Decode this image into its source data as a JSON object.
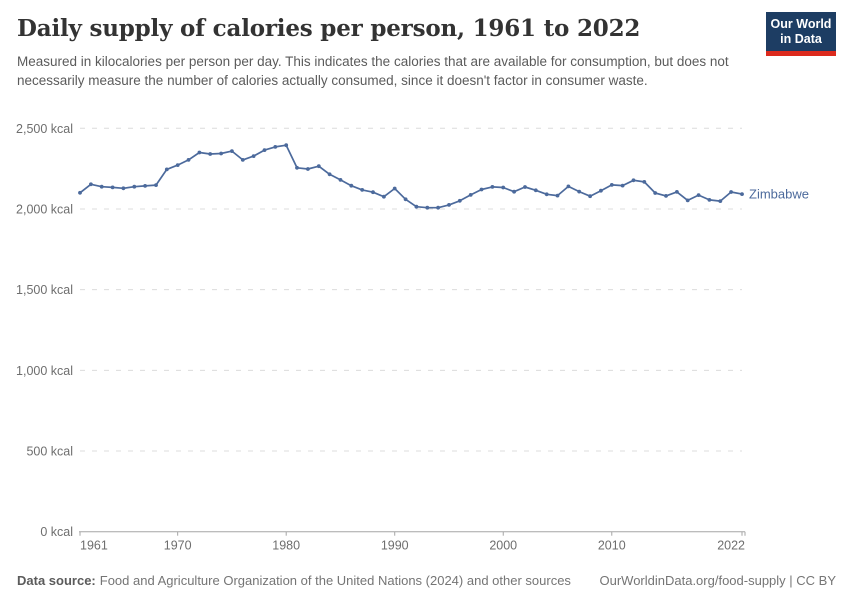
{
  "header": {
    "title": "Daily supply of calories per person, 1961 to 2022",
    "subtitle": "Measured in kilocalories per person per day. This indicates the calories that are available for consumption, but does not necessarily measure the number of calories actually consumed, since it doesn't factor in consumer waste.",
    "logo": {
      "line1": "Our World",
      "line2": "in Data"
    }
  },
  "chart_data": {
    "type": "line",
    "title": "Daily supply of calories per person, 1961 to 2022",
    "unit": "kcal",
    "xlabel": "",
    "ylabel": "",
    "xlim": [
      1961,
      2022
    ],
    "ylim": [
      0,
      2500
    ],
    "grid": "horizontal-dashed",
    "legend_position": "line-end-label",
    "x_ticks": [
      "1961",
      "1970",
      "1980",
      "1990",
      "2000",
      "2010",
      "2022"
    ],
    "y_ticks": [
      {
        "value": 0,
        "label": "0 kcal"
      },
      {
        "value": 500,
        "label": "500 kcal"
      },
      {
        "value": 1000,
        "label": "1,000 kcal"
      },
      {
        "value": 1500,
        "label": "1,500 kcal"
      },
      {
        "value": 2000,
        "label": "2,000 kcal"
      },
      {
        "value": 2500,
        "label": "2,500 kcal"
      }
    ],
    "series": [
      {
        "name": "Zimbabwe",
        "color": "#4C6A9C",
        "years": [
          1961,
          1962,
          1963,
          1964,
          1965,
          1966,
          1967,
          1968,
          1969,
          1970,
          1971,
          1972,
          1973,
          1974,
          1975,
          1976,
          1977,
          1978,
          1979,
          1980,
          1981,
          1982,
          1983,
          1984,
          1985,
          1986,
          1987,
          1988,
          1989,
          1990,
          1991,
          1992,
          1993,
          1994,
          1995,
          1996,
          1997,
          1998,
          1999,
          2000,
          2001,
          2002,
          2003,
          2004,
          2005,
          2006,
          2007,
          2008,
          2009,
          2010,
          2011,
          2012,
          2013,
          2014,
          2015,
          2016,
          2017,
          2018,
          2019,
          2020,
          2021,
          2022
        ],
        "values": [
          2100,
          2153,
          2138,
          2134,
          2128,
          2138,
          2143,
          2148,
          2245,
          2272,
          2304,
          2350,
          2341,
          2344,
          2359,
          2304,
          2328,
          2365,
          2385,
          2395,
          2255,
          2248,
          2265,
          2215,
          2180,
          2144,
          2118,
          2104,
          2076,
          2127,
          2060,
          2014,
          2008,
          2008,
          2025,
          2051,
          2087,
          2121,
          2137,
          2133,
          2107,
          2136,
          2116,
          2091,
          2083,
          2140,
          2108,
          2079,
          2113,
          2149,
          2145,
          2178,
          2168,
          2099,
          2081,
          2106,
          2053,
          2086,
          2056,
          2049,
          2105,
          2092
        ]
      }
    ]
  },
  "footer": {
    "data_source_label": "Data source:",
    "data_source_text": "Food and Agriculture Organization of the United Nations (2024) and other sources",
    "link_text": "OurWorldinData.org/food-supply | CC BY"
  },
  "colors": {
    "line_blue": "#4C6A9C",
    "logo_navy": "#1d3d63",
    "logo_red": "#dc2a1d",
    "grid": "#dcdcdc",
    "axis": "#a5a5a5",
    "tick_text": "#6e6e6e",
    "title_text": "#333333",
    "subtitle_text": "#5b5b5b",
    "footer_text": "#757575"
  }
}
